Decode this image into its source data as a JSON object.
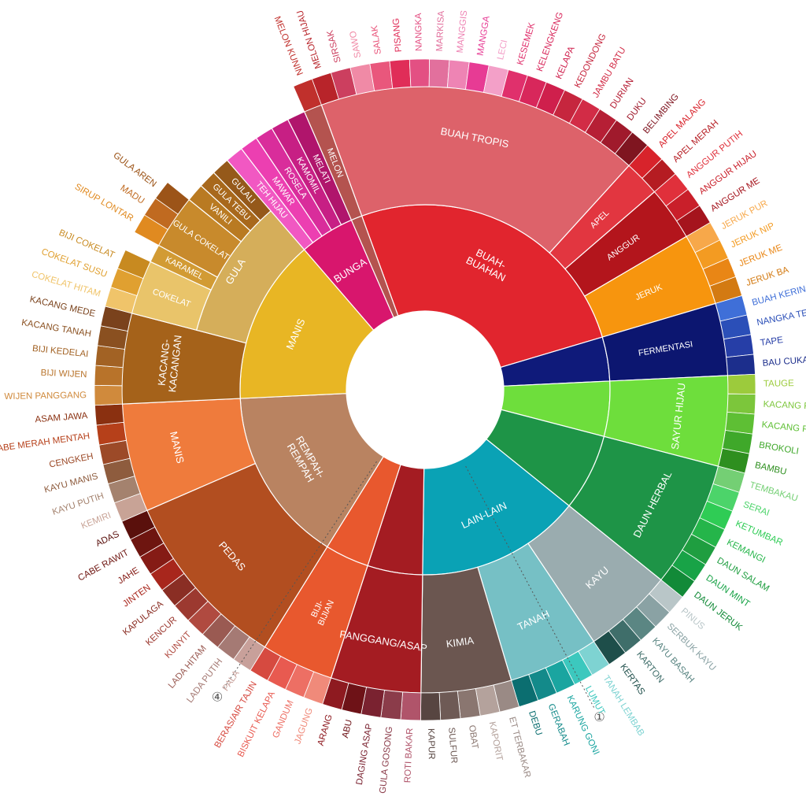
{
  "wheel": {
    "start_angle_deg": -20,
    "segments": [
      {
        "label": "BUAH-\nBUAHAN",
        "color": "#e1252e",
        "children": [
          {
            "label": "BUAH TROPIS",
            "color": "#dd626a",
            "children": [
              {
                "label": "MELON HIJAU",
                "color": "#b8242a"
              },
              {
                "label": "SIRSAK",
                "color": "#cc3f5f"
              },
              {
                "label": "SAWO",
                "color": "#f08aa6"
              },
              {
                "label": "SALAK",
                "color": "#e9577c"
              },
              {
                "label": "PISANG",
                "color": "#e02d58"
              },
              {
                "label": "NANGKA",
                "color": "#e35083"
              },
              {
                "label": "MARKISA",
                "color": "#e2709d"
              },
              {
                "label": "MANGGIS",
                "color": "#ee84b4"
              },
              {
                "label": "MANGGA",
                "color": "#e73b94"
              },
              {
                "label": "LECI",
                "color": "#f3a0c8"
              },
              {
                "label": "KESEMEK",
                "color": "#e0306c"
              },
              {
                "label": "KELENGKENG",
                "color": "#d8275b"
              },
              {
                "label": "KELAPA",
                "color": "#cf1f4c"
              },
              {
                "label": "KEDONDONG",
                "color": "#c6263e"
              },
              {
                "label": "JAMBU BATU",
                "color": "#d22c46"
              },
              {
                "label": "DURIAN",
                "color": "#b61f35"
              },
              {
                "label": "DUKU",
                "color": "#a01a2c"
              },
              {
                "label": "BELIMBING",
                "color": "#7f1520"
              }
            ]
          },
          {
            "label": "APEL",
            "color": "#e23640",
            "children": [
              {
                "label": "APEL MALANG",
                "color": "#d8232b"
              },
              {
                "label": "APEL MERAH",
                "color": "#b51c22"
              }
            ]
          },
          {
            "label": "ANGGUR",
            "color": "#b3151c",
            "children": [
              {
                "label": "ANGGUR PUTIH",
                "color": "#e0303b"
              },
              {
                "label": "ANGGUR HIJAU",
                "color": "#c91f2a"
              },
              {
                "label": "ANGGUR ME",
                "color": "#a5141d"
              }
            ]
          },
          {
            "label": "JERUK",
            "color": "#f7950e",
            "children": [
              {
                "label": "JERUK PUR",
                "color": "#f7a84a"
              },
              {
                "label": "JERUK NIP",
                "color": "#f39b22"
              },
              {
                "label": "JERUK ME",
                "color": "#e98615"
              },
              {
                "label": "JERUK BA",
                "color": "#d37a12"
              }
            ]
          }
        ]
      },
      {
        "label": "",
        "color": "#0f1a7a",
        "children": [
          {
            "label": "FERMENTASI",
            "color": "#0c1670",
            "children": [
              {
                "label": "BUAH KERING",
                "color": "#3f6fd8"
              },
              {
                "label": "NANGKA TERLALU MATANG",
                "color": "#2b4fb8"
              },
              {
                "label": "TAPE",
                "color": "#263ea7"
              },
              {
                "label": "BAU CUKA",
                "color": "#1c2e8c"
              }
            ]
          }
        ]
      },
      {
        "label": "",
        "color": "#6ede3c",
        "children": [
          {
            "label": "SAYUR HIJAU",
            "color": "#6ede3c",
            "children": [
              {
                "label": "TAUGE",
                "color": "#9ccb3c"
              },
              {
                "label": "KACANG POLONG",
                "color": "#7cc63b"
              },
              {
                "label": "KACANG PANJANG",
                "color": "#5ebf34"
              },
              {
                "label": "BROKOLI",
                "color": "#3fa82a"
              },
              {
                "label": "BAMBU",
                "color": "#2e8f1f"
              }
            ]
          }
        ]
      },
      {
        "label": "",
        "color": "#1e9447",
        "children": [
          {
            "label": "DAUN HERBAL",
            "color": "#1e9447",
            "children": [
              {
                "label": "TEMBAKAU",
                "color": "#74cf74"
              },
              {
                "label": "SERAI",
                "color": "#4cd46a"
              },
              {
                "label": "KETUMBAR",
                "color": "#2fcc55"
              },
              {
                "label": "KEMANGI",
                "color": "#25b54a"
              },
              {
                "label": "DAUN SALAM",
                "color": "#1f9e40"
              },
              {
                "label": "DAUN MINT",
                "color": "#18a347"
              },
              {
                "label": "DAUN JERUK",
                "color": "#128a38"
              }
            ]
          }
        ]
      },
      {
        "label": "LAIN-LAIN",
        "color": "#0aa2b5",
        "children": [
          {
            "label": "KAYU",
            "color": "#9aacaf",
            "children": [
              {
                "label": "PINUS",
                "color": "#b9c6c8"
              },
              {
                "label": "SERBUK KAYU",
                "color": "#8aa2a4"
              },
              {
                "label": "KAYU BASAH",
                "color": "#5b8683"
              },
              {
                "label": "KARTON",
                "color": "#3f6e6a"
              },
              {
                "label": "KERTAS",
                "color": "#1e4e4a"
              }
            ]
          },
          {
            "label": "TANAH",
            "color": "#76c0c5",
            "children": [
              {
                "label": "TANAH LEMBAB",
                "color": "#7ed3d2"
              },
              {
                "label": "LUMUT",
                "color": "#3cc8be"
              },
              {
                "label": "KARUNG GONI",
                "color": "#1aa5a0"
              },
              {
                "label": "GERABAH",
                "color": "#138a8a"
              },
              {
                "label": "DEBU",
                "color": "#0b6e70"
              }
            ]
          },
          {
            "label": "KIMIA",
            "color": "#6b5650",
            "children": [
              {
                "label": "ET TERBAKAR",
                "color": "#9a8a85"
              },
              {
                "label": "KAPORIT",
                "color": "#b4a29c"
              },
              {
                "label": "OBAT",
                "color": "#8a7670"
              },
              {
                "label": "SULFUR",
                "color": "#6e5a55"
              },
              {
                "label": "KAPUR",
                "color": "#574541"
              }
            ]
          }
        ]
      },
      {
        "label": "",
        "color": "#a41c22",
        "children": [
          {
            "label": "PANGGANG/ASAP",
            "color": "#a41c22",
            "children": [
              {
                "label": "ROTI BAKAR",
                "color": "#b0546a"
              },
              {
                "label": "GULA GOSONG",
                "color": "#8b3c4a"
              },
              {
                "label": "DAGING ASAP",
                "color": "#7a2230"
              },
              {
                "label": "ABU",
                "color": "#6e1217"
              },
              {
                "label": "ARANG",
                "color": "#8e1a20"
              }
            ]
          }
        ]
      },
      {
        "label": "",
        "color": "#e8582e",
        "children": [
          {
            "label": "BIJI-\nBIJIAN",
            "color": "#e8582e",
            "children": [
              {
                "label": "JAGUNG",
                "color": "#f08a7a"
              },
              {
                "label": "GANDUM",
                "color": "#ed6f64"
              },
              {
                "label": "BISKUIT KELAPA",
                "color": "#e85a50"
              },
              {
                "label": "BERAS/AIR TAJIN",
                "color": "#d64a40"
              }
            ]
          }
        ]
      },
      {
        "label": "REMPAH-\nREMPAH",
        "color": "#b98361",
        "children": [
          {
            "label": "PEDAS",
            "color": "#b24e20",
            "children": [
              {
                "label": "PALA",
                "color": "#c8a09a"
              },
              {
                "label": "LADA PUTIH",
                "color": "#a57a74"
              },
              {
                "label": "LADA HITAM",
                "color": "#9a5a52"
              },
              {
                "label": "KUNYIT",
                "color": "#b04a40"
              },
              {
                "label": "KENCUR",
                "color": "#9c3930"
              },
              {
                "label": "KAPULAGA",
                "color": "#8a2e24"
              },
              {
                "label": "JINTEN",
                "color": "#a8261c"
              },
              {
                "label": "JAHE",
                "color": "#851b15"
              },
              {
                "label": "CABE RAWIT",
                "color": "#6e1510"
              },
              {
                "label": "ADAS",
                "color": "#5a100c"
              }
            ]
          },
          {
            "label": "MANIS",
            "color": "#ef7b3c",
            "children": [
              {
                "label": "KEMIRI",
                "color": "#c8a396"
              },
              {
                "label": "KAYU PUTIH",
                "color": "#a4826e"
              },
              {
                "label": "KAYU MANIS",
                "color": "#8e5c3e"
              },
              {
                "label": "CENGKEH",
                "color": "#9c4a28"
              },
              {
                "label": "CABE MERAH MENTAH",
                "color": "#b6401a"
              },
              {
                "label": "ASAM JAWA",
                "color": "#8a3010"
              }
            ]
          }
        ]
      },
      {
        "label": "MANIS",
        "color": "#e8b624",
        "children": [
          {
            "label": "KACANG-\nKACANGAN",
            "color": "#a5621a",
            "children": [
              {
                "label": "WIJEN PANGGANG",
                "color": "#d08a3c"
              },
              {
                "label": "BIJI WIJEN",
                "color": "#b8732a"
              },
              {
                "label": "BIJI KEDELAI",
                "color": "#a26224"
              },
              {
                "label": "KACANG TANAH",
                "color": "#8a5020"
              },
              {
                "label": "KACANG MEDE",
                "color": "#7a421c"
              }
            ]
          },
          {
            "label": "GULA",
            "color": "#d5ae5a",
            "children": [
              {
                "label": "COKELAT",
                "color": "#e9c46a",
                "children": [
                  {
                    "label": "COKELAT HITAM",
                    "color": "#f0c46a"
                  },
                  {
                    "label": "COKELAT SUSU",
                    "color": "#e0a030"
                  },
                  {
                    "label": "BIJI COKELAT",
                    "color": "#c88a20"
                  }
                ]
              },
              {
                "label": "KARAMEL",
                "color": "#d29b34",
                "children": []
              },
              {
                "label": "GULA COKELAT",
                "color": "#c88a2c",
                "children": [
                  {
                    "label": "SIRUP LONTAR",
                    "color": "#e08a20"
                  },
                  {
                    "label": "MADU",
                    "color": "#c06a20"
                  },
                  {
                    "label": "GULA AREN",
                    "color": "#9c5418"
                  }
                ]
              },
              {
                "label": "VANILI",
                "color": "#b97a22",
                "children": []
              },
              {
                "label": "GULA TEBU",
                "color": "#a8681c",
                "children": []
              },
              {
                "label": "GULALI",
                "color": "#95591a",
                "children": []
              }
            ]
          }
        ]
      },
      {
        "label": "BUNGA",
        "color": "#d8166d",
        "children": [
          {
            "label": "TEH HIJAU",
            "color": "#f158c2",
            "children": []
          },
          {
            "label": "MAWAR",
            "color": "#ec3fb1",
            "children": []
          },
          {
            "label": "ROSELA",
            "color": "#d92d9b",
            "children": []
          },
          {
            "label": "KAMOMIL",
            "color": "#c71f84",
            "children": []
          },
          {
            "label": "MELATI",
            "color": "#b0156c",
            "children": []
          }
        ]
      },
      {
        "label": "",
        "color": "#b4534f",
        "children": [
          {
            "label": "MELON",
            "color": "#b4534f",
            "children": [
              {
                "label": "MELON KUNIN",
                "color": "#c0302c"
              }
            ]
          }
        ]
      }
    ],
    "markers": [
      {
        "label": "①",
        "angle_deg": 152
      },
      {
        "label": "④",
        "angle_deg": 214
      }
    ]
  }
}
